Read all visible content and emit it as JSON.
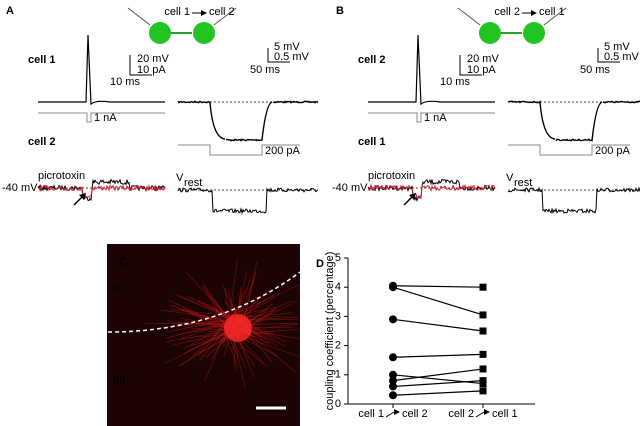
{
  "panel_a": {
    "label": "A",
    "schematic": {
      "from": "cell 1",
      "to": "cell 2"
    },
    "top_cell": "cell 1",
    "bottom_cell": "cell 2",
    "scale_left": {
      "v": "20 mV",
      "i": "10 pA",
      "t": "10 ms"
    },
    "scale_right": {
      "v": "5 mV",
      "v2": "0.5 mV",
      "t": "50 ms"
    },
    "step_left": "1 nA",
    "step_right": "200 pA",
    "drug": "picrotoxin",
    "holding": "-40 mV",
    "vrest": "V",
    "vrest_sub": "rest"
  },
  "panel_b": {
    "label": "B",
    "schematic": {
      "from": "cell 2",
      "to": "cell 1"
    },
    "top_cell": "cell 2",
    "bottom_cell": "cell 1",
    "scale_left": {
      "v": "20 mV",
      "i": "10 pA",
      "t": "10 ms"
    },
    "scale_right": {
      "v": "5 mV",
      "v2": "0.5 mV",
      "t": "50 ms"
    },
    "step_left": "1 nA",
    "step_right": "200 pA",
    "drug": "picrotoxin",
    "holding": "-40 mV",
    "vrest": "V",
    "vrest_sub": "rest"
  },
  "panel_c": {
    "label": "C",
    "layer_top": "Ic",
    "layer_bottom": "Im"
  },
  "chart_data": {
    "type": "paired",
    "label": "D",
    "ylabel": "coupling coefficient (percentage)",
    "categories": [
      {
        "from": "cell 1",
        "to": "cell 2"
      },
      {
        "from": "cell 2",
        "to": "cell 1"
      }
    ],
    "series": [
      {
        "values": [
          4.05,
          4.0
        ]
      },
      {
        "values": [
          4.0,
          3.05
        ]
      },
      {
        "values": [
          2.9,
          2.5
        ]
      },
      {
        "values": [
          1.6,
          1.7
        ]
      },
      {
        "values": [
          1.0,
          0.7
        ]
      },
      {
        "values": [
          0.8,
          1.2
        ]
      },
      {
        "values": [
          0.6,
          0.8
        ]
      },
      {
        "values": [
          0.3,
          0.45
        ]
      }
    ],
    "markers": [
      "circle",
      "square"
    ],
    "color": "#000000",
    "ylim": [
      0,
      5
    ],
    "yticks": [
      0,
      1,
      2,
      3,
      4,
      5
    ]
  }
}
